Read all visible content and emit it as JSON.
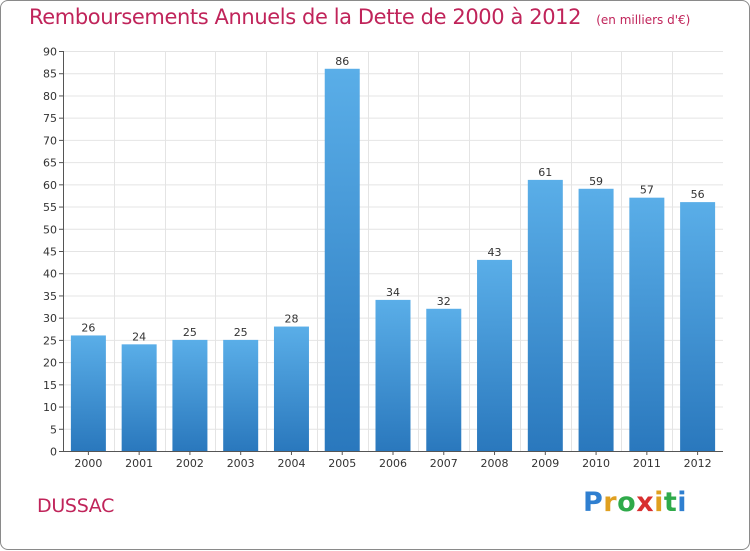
{
  "chart_data": {
    "type": "bar",
    "title": "Remboursements Annuels de la Dette de 2000 à 2012",
    "subtitle": "(en milliers d'€)",
    "categories": [
      "2000",
      "2001",
      "2002",
      "2003",
      "2004",
      "2005",
      "2006",
      "2007",
      "2008",
      "2009",
      "2010",
      "2011",
      "2012"
    ],
    "values": [
      26,
      24,
      25,
      25,
      28,
      86,
      34,
      32,
      43,
      61,
      59,
      57,
      56
    ],
    "ylim": [
      0,
      90
    ],
    "ytick_step": 5,
    "grid": true,
    "bar_color_light": "#5aaee8",
    "bar_color_dark": "#2a78bd"
  },
  "place": "DUSSAC",
  "logo": {
    "letters": [
      "P",
      "r",
      "o",
      "x",
      "i",
      "t",
      "i"
    ],
    "colors": [
      "#2f7fd0",
      "#e0a020",
      "#2faa4a",
      "#d83030",
      "#e0a020",
      "#2faa4a",
      "#2f7fd0"
    ]
  }
}
